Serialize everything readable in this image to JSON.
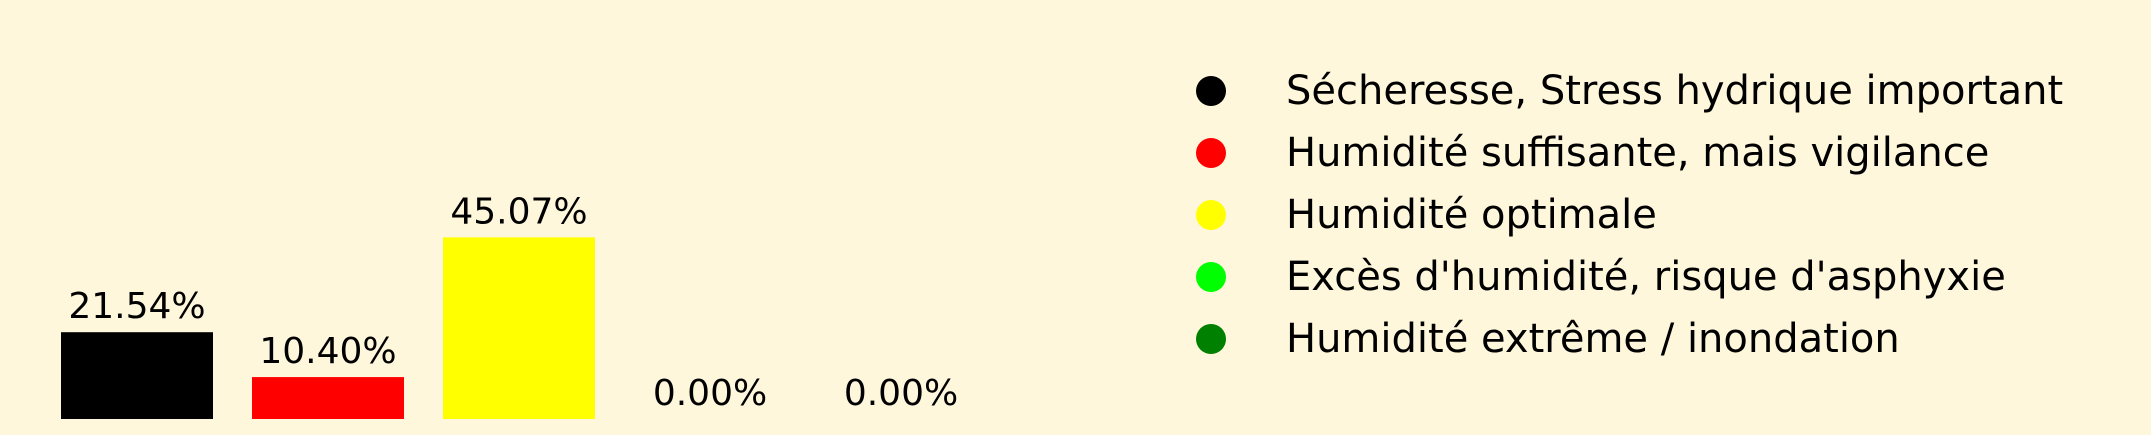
{
  "chart_data": {
    "type": "bar",
    "background": "#FEF7DC",
    "categories": [
      "Sécheresse, Stress hydrique important",
      "Humidité suffisante, mais vigilance",
      "Humidité optimale",
      "Excès d'humidité, risque d'asphyxie",
      "Humidité extrême / inondation"
    ],
    "values": [
      21.54,
      10.4,
      45.07,
      0.0,
      0.0
    ],
    "value_labels": [
      "21.54%",
      "10.40%",
      "45.07%",
      "0.00%",
      "0.00%"
    ],
    "colors": [
      "#000000",
      "#FF0000",
      "#FFFF00",
      "#00FF00",
      "#008000"
    ],
    "ylim": [
      0,
      100
    ],
    "grid": false,
    "axes_visible": false,
    "legend": {
      "placement": "right",
      "marker": "circle",
      "entries": [
        {
          "label": "Sécheresse, Stress hydrique important",
          "color": "#000000"
        },
        {
          "label": "Humidité suffisante, mais vigilance",
          "color": "#FF0000"
        },
        {
          "label": "Humidité optimale",
          "color": "#FFFF00"
        },
        {
          "label": "Excès d'humidité, risque d'asphyxie",
          "color": "#00FF00"
        },
        {
          "label": "Humidité extrême / inondation",
          "color": "#008000"
        }
      ]
    }
  }
}
